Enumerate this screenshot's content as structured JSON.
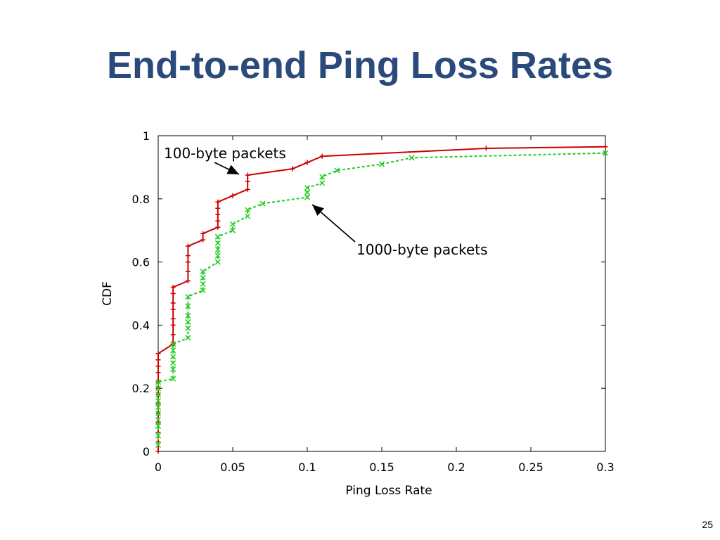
{
  "slide": {
    "title": "End-to-end Ping Loss Rates",
    "page_number": "25"
  },
  "chart_data": {
    "type": "line",
    "xlabel": "Ping Loss Rate",
    "ylabel": "CDF",
    "xlim": [
      0,
      0.3
    ],
    "ylim": [
      0,
      1
    ],
    "xticks": [
      "0",
      "0.05",
      "0.1",
      "0.15",
      "0.2",
      "0.25",
      "0.3"
    ],
    "yticks": [
      "0",
      "0.2",
      "0.4",
      "0.6",
      "0.8",
      "1"
    ],
    "grid": false,
    "legend": "none",
    "annotations": [
      {
        "text": "100-byte packets",
        "target_series": 0
      },
      {
        "text": "1000-byte packets",
        "target_series": 1
      }
    ],
    "series": [
      {
        "name": "100-byte packets",
        "color": "#cc0000",
        "marker": "+",
        "x": [
          0,
          0,
          0,
          0,
          0,
          0,
          0,
          0,
          0,
          0,
          0,
          0,
          0,
          0.01,
          0.01,
          0.01,
          0.01,
          0.01,
          0.01,
          0.01,
          0.01,
          0.02,
          0.02,
          0.02,
          0.02,
          0.02,
          0.03,
          0.03,
          0.04,
          0.04,
          0.04,
          0.04,
          0.04,
          0.05,
          0.06,
          0.06,
          0.06,
          0.09,
          0.1,
          0.11,
          0.22,
          0.3
        ],
        "y": [
          0,
          0.03,
          0.06,
          0.09,
          0.12,
          0.15,
          0.18,
          0.2,
          0.22,
          0.25,
          0.27,
          0.29,
          0.31,
          0.34,
          0.37,
          0.4,
          0.42,
          0.45,
          0.47,
          0.5,
          0.52,
          0.54,
          0.57,
          0.6,
          0.62,
          0.65,
          0.67,
          0.69,
          0.71,
          0.73,
          0.75,
          0.77,
          0.79,
          0.81,
          0.83,
          0.855,
          0.875,
          0.895,
          0.915,
          0.935,
          0.96,
          0.965
        ]
      },
      {
        "name": "1000-byte packets",
        "color": "#22cc22",
        "marker": "x",
        "x": [
          0,
          0,
          0,
          0,
          0,
          0,
          0,
          0,
          0,
          0,
          0.01,
          0.01,
          0.01,
          0.01,
          0.01,
          0.01,
          0.02,
          0.02,
          0.02,
          0.02,
          0.02,
          0.02,
          0.03,
          0.03,
          0.03,
          0.03,
          0.04,
          0.04,
          0.04,
          0.04,
          0.04,
          0.05,
          0.05,
          0.06,
          0.06,
          0.07,
          0.1,
          0.1,
          0.1,
          0.11,
          0.11,
          0.12,
          0.15,
          0.17,
          0.3
        ],
        "y": [
          0.02,
          0.05,
          0.08,
          0.1,
          0.12,
          0.14,
          0.16,
          0.18,
          0.2,
          0.22,
          0.23,
          0.26,
          0.28,
          0.3,
          0.32,
          0.34,
          0.36,
          0.39,
          0.41,
          0.43,
          0.46,
          0.49,
          0.51,
          0.53,
          0.55,
          0.57,
          0.6,
          0.62,
          0.64,
          0.66,
          0.68,
          0.7,
          0.72,
          0.745,
          0.765,
          0.785,
          0.805,
          0.82,
          0.835,
          0.85,
          0.87,
          0.89,
          0.91,
          0.93,
          0.945
        ]
      }
    ]
  }
}
